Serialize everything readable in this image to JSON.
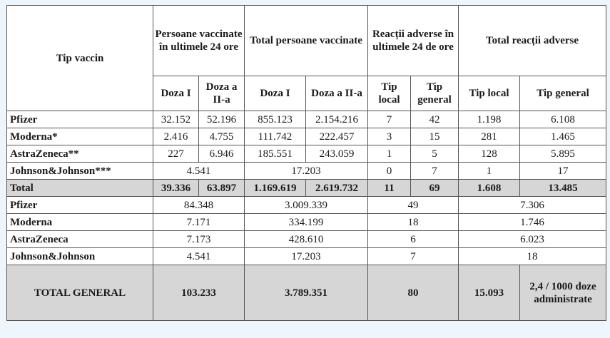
{
  "header": {
    "tip_vaccin": "Tip vaccin",
    "group1": "Persoane vaccinate în ultimele 24 ore",
    "group2": "Total persoane vaccinate",
    "group3": "Reacții adverse în ultimele 24 de ore",
    "group4": "Total reacții adverse",
    "doza1": "Doza I",
    "doza2": "Doza a II-a",
    "tip_local": "Tip local",
    "tip_general": "Tip general"
  },
  "rows": [
    {
      "name": "Pfizer",
      "v": [
        "32.152",
        "52.196",
        "855.123",
        "2.154.216",
        "7",
        "42",
        "1.198",
        "6.108"
      ]
    },
    {
      "name": "Moderna*",
      "v": [
        "2.416",
        "4.755",
        "111.742",
        "222.457",
        "3",
        "15",
        "281",
        "1.465"
      ]
    },
    {
      "name": "AstraZeneca**",
      "v": [
        "227",
        "6.946",
        "185.551",
        "243.059",
        "1",
        "5",
        "128",
        "5.895"
      ]
    }
  ],
  "jj": {
    "name": "Johnson&Johnson***",
    "v": [
      "4.541",
      "17.203",
      "0",
      "7",
      "1",
      "17"
    ]
  },
  "total": {
    "name": "Total",
    "v": [
      "39.336",
      "63.897",
      "1.169.619",
      "2.619.732",
      "11",
      "69",
      "1.608",
      "13.485"
    ]
  },
  "summary": [
    {
      "name": "Pfizer",
      "v": [
        "84.348",
        "3.009.339",
        "49",
        "7.306"
      ]
    },
    {
      "name": "Moderna",
      "v": [
        "7.171",
        "334.199",
        "18",
        "1.746"
      ]
    },
    {
      "name": "AstraZeneca",
      "v": [
        "7.173",
        "428.610",
        "6",
        "6.023"
      ]
    },
    {
      "name": "Johnson&Johnson",
      "v": [
        "4.541",
        "17.203",
        "7",
        "18"
      ]
    }
  ],
  "total_general": {
    "name": "TOTAL GENERAL",
    "v": [
      "103.233",
      "3.789.351",
      "80",
      "15.093",
      "2,4 / 1000 doze administrate"
    ]
  },
  "colors": {
    "shade": "#d6d6d6",
    "background": "#eef6fb"
  }
}
